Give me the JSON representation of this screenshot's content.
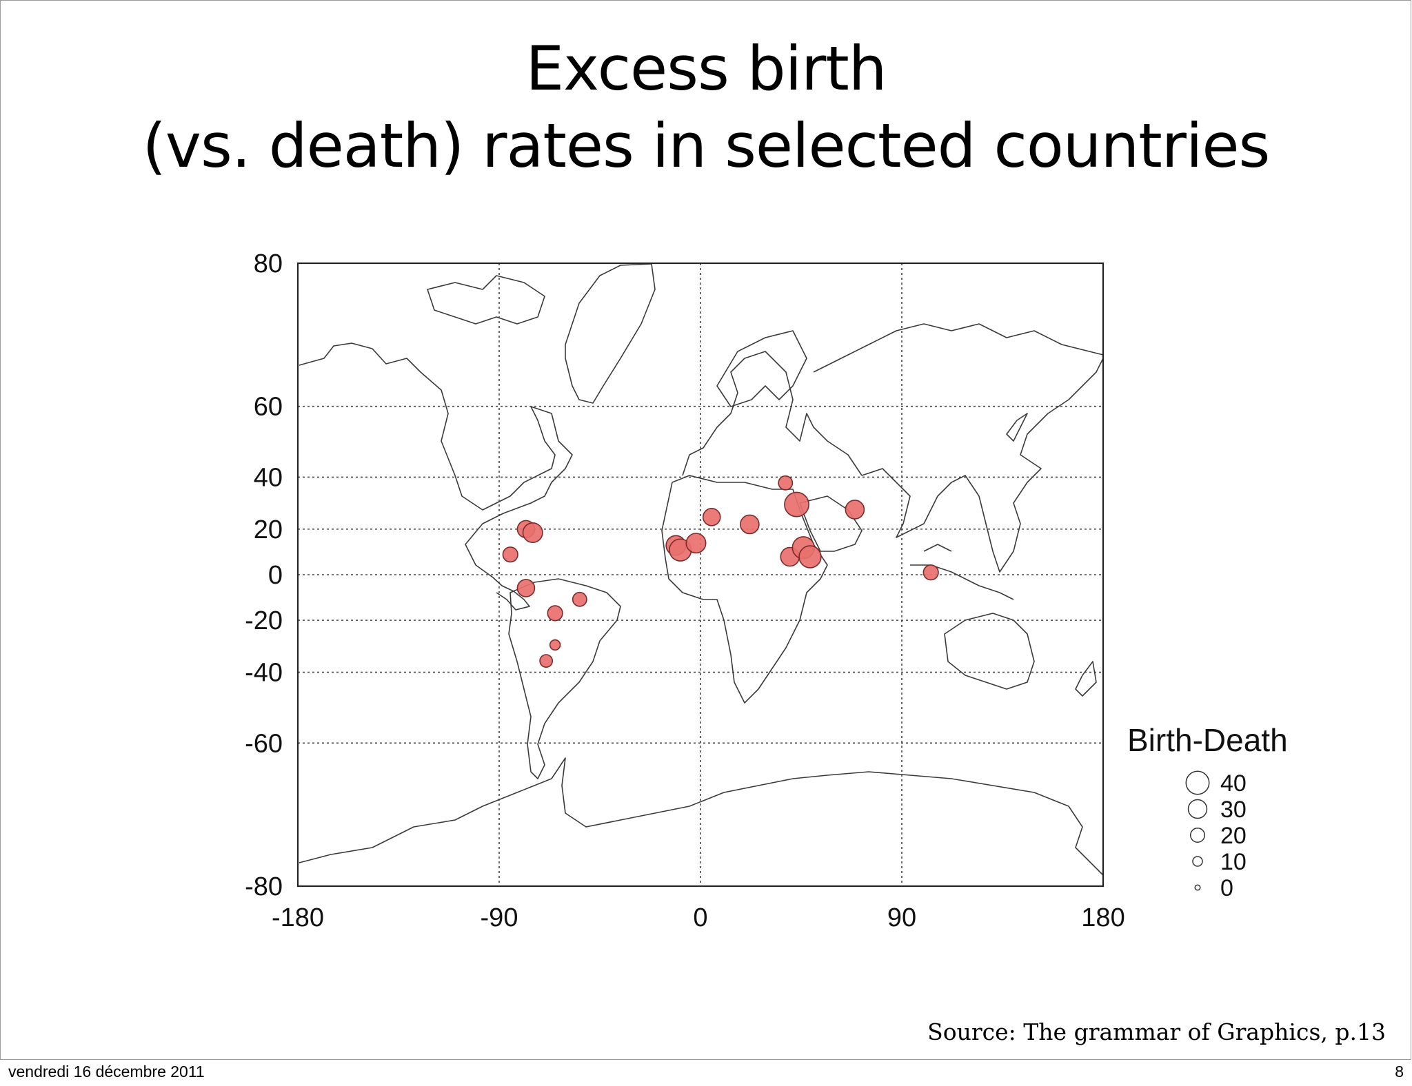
{
  "slide": {
    "title_line1": "Excess birth",
    "title_line2": "(vs. death) rates in selected countries",
    "source": "Source: The grammar of Graphics, p.13",
    "footer_date": "vendredi 16 décembre 2011",
    "footer_page": "8"
  },
  "chart_data": {
    "type": "scatter",
    "title": "",
    "xlabel": "",
    "ylabel": "",
    "xlim": [
      -180,
      180
    ],
    "ylim": [
      -80,
      80
    ],
    "y_scale": "mercator",
    "x_ticks": [
      -180,
      -90,
      0,
      90,
      180
    ],
    "y_ticks": [
      80,
      60,
      40,
      20,
      0,
      -20,
      -40,
      -60,
      -80
    ],
    "grid": true,
    "background": "world coastline map",
    "point_color": "#e8706e",
    "point_edge_color": "#7a2a2a",
    "legend": {
      "title": "Birth-Death",
      "position": "right",
      "sizes": [
        40,
        30,
        20,
        10,
        0
      ]
    },
    "points": [
      {
        "lon": -85,
        "lat": 9,
        "value": 20
      },
      {
        "lon": -78,
        "lat": 20,
        "value": 25
      },
      {
        "lon": -75,
        "lat": 18.5,
        "value": 30
      },
      {
        "lon": -78,
        "lat": -6,
        "value": 25
      },
      {
        "lon": -65,
        "lat": -17,
        "value": 20
      },
      {
        "lon": -54,
        "lat": -11,
        "value": 18
      },
      {
        "lon": -65,
        "lat": -30,
        "value": 10
      },
      {
        "lon": -69,
        "lat": -36,
        "value": 15
      },
      {
        "lon": -11,
        "lat": 13,
        "value": 30
      },
      {
        "lon": -9,
        "lat": 11,
        "value": 35
      },
      {
        "lon": -2,
        "lat": 14,
        "value": 30
      },
      {
        "lon": 5,
        "lat": 25,
        "value": 25
      },
      {
        "lon": 22,
        "lat": 22,
        "value": 28
      },
      {
        "lon": 38,
        "lat": 38,
        "value": 18
      },
      {
        "lon": 43,
        "lat": 30,
        "value": 40
      },
      {
        "lon": 40,
        "lat": 8,
        "value": 28
      },
      {
        "lon": 46,
        "lat": 12,
        "value": 35
      },
      {
        "lon": 49,
        "lat": 8,
        "value": 35
      },
      {
        "lon": 69,
        "lat": 28,
        "value": 28
      },
      {
        "lon": 103,
        "lat": 1,
        "value": 20
      }
    ]
  }
}
